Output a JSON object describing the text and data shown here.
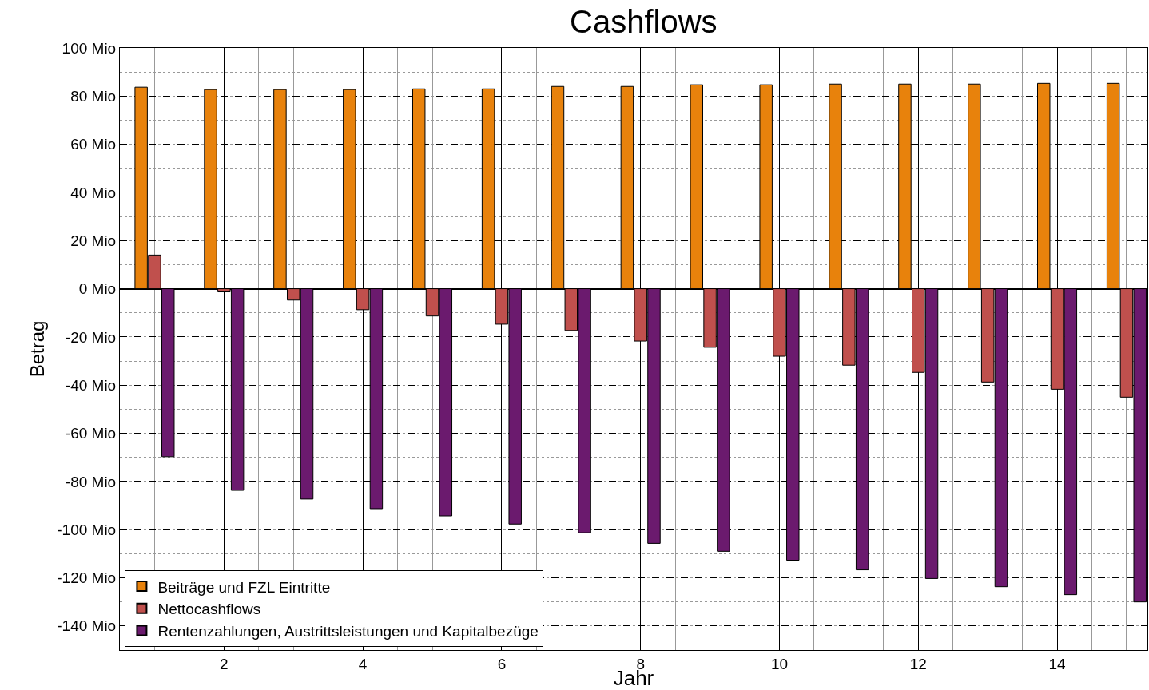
{
  "chart_data": {
    "type": "bar",
    "title": "Cashflows",
    "xlabel": "Jahr",
    "ylabel": "Betrag",
    "x": [
      1,
      2,
      3,
      4,
      5,
      6,
      7,
      8,
      9,
      10,
      11,
      12,
      13,
      14,
      15
    ],
    "series": [
      {
        "name": "Beiträge und FZL Eintritte",
        "color": "#e8820c",
        "values": [
          83.7,
          82.7,
          82.7,
          82.7,
          83,
          83,
          84,
          84,
          84.7,
          84.7,
          85,
          85,
          85,
          85.3,
          85.3
        ]
      },
      {
        "name": "Nettocashflows",
        "color": "#c0504d",
        "values": [
          14,
          -1.3,
          -4.7,
          -8.7,
          -11.3,
          -14.7,
          -17.3,
          -21.7,
          -24.3,
          -28,
          -31.7,
          -34.7,
          -38.7,
          -41.7,
          -45
        ]
      },
      {
        "name": "Rentenzahlungen, Austrittsleistungen und Kapitalbezüge",
        "color": "#6b1a6e",
        "values": [
          -69.7,
          -83.7,
          -87.3,
          -91.3,
          -94.3,
          -97.7,
          -101.3,
          -105.7,
          -109,
          -112.7,
          -116.7,
          -120.3,
          -123.7,
          -127,
          -130
        ]
      }
    ],
    "xlim": [
      0.5,
      15.3
    ],
    "xticks": [
      2,
      4,
      6,
      8,
      10,
      12,
      14
    ],
    "ylim": [
      -150,
      100
    ],
    "yticks": [
      {
        "value": 100,
        "label": "100 Mio"
      },
      {
        "value": 80,
        "label": "80 Mio"
      },
      {
        "value": 60,
        "label": "60 Mio"
      },
      {
        "value": 40,
        "label": "40 Mio"
      },
      {
        "value": 20,
        "label": "20 Mio"
      },
      {
        "value": 0,
        "label": "0 Mio"
      },
      {
        "value": -20,
        "label": "-20 Mio"
      },
      {
        "value": -40,
        "label": "-40 Mio"
      },
      {
        "value": -60,
        "label": "-60 Mio"
      },
      {
        "value": -80,
        "label": "-80 Mio"
      },
      {
        "value": -100,
        "label": "-100 Mio"
      },
      {
        "value": -120,
        "label": "-120 Mio"
      },
      {
        "value": -140,
        "label": "-140 Mio"
      }
    ],
    "grid": true,
    "legend": "bottom left"
  }
}
